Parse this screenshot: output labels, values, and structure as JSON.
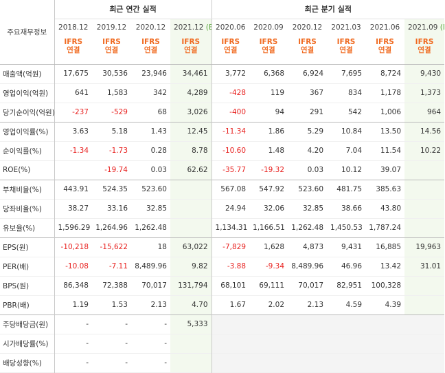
{
  "table": {
    "label_header": "주요재무정보",
    "group_annual": "최근 연간 실적",
    "group_quarter": "최근 분기 실적",
    "periods": [
      {
        "label": "2018.12",
        "est": ""
      },
      {
        "label": "2019.12",
        "est": ""
      },
      {
        "label": "2020.12",
        "est": ""
      },
      {
        "label": "2021.12",
        "est": "(E)"
      },
      {
        "label": "2020.06",
        "est": ""
      },
      {
        "label": "2020.09",
        "est": ""
      },
      {
        "label": "2020.12",
        "est": ""
      },
      {
        "label": "2021.03",
        "est": ""
      },
      {
        "label": "2021.06",
        "est": ""
      },
      {
        "label": "2021.09",
        "est": "(E)"
      }
    ],
    "ifrs_line1": "IFRS",
    "ifrs_line2": "연결",
    "rows": [
      {
        "label": "매출액(억원)",
        "values": [
          "17,675",
          "30,536",
          "23,946",
          "34,461",
          "3,772",
          "6,368",
          "6,924",
          "7,695",
          "8,724",
          "9,430"
        ]
      },
      {
        "label": "영업이익(억원)",
        "values": [
          "641",
          "1,583",
          "342",
          "4,289",
          "-428",
          "119",
          "367",
          "834",
          "1,178",
          "1,373"
        ]
      },
      {
        "label": "당기순이익(억원)",
        "values": [
          "-237",
          "-529",
          "68",
          "3,026",
          "-400",
          "94",
          "291",
          "542",
          "1,006",
          "964"
        ]
      },
      {
        "label": "영업이익률(%)",
        "values": [
          "3.63",
          "5.18",
          "1.43",
          "12.45",
          "-11.34",
          "1.86",
          "5.29",
          "10.84",
          "13.50",
          "14.56"
        ]
      },
      {
        "label": "순이익률(%)",
        "values": [
          "-1.34",
          "-1.73",
          "0.28",
          "8.78",
          "-10.60",
          "1.48",
          "4.20",
          "7.04",
          "11.54",
          "10.22"
        ]
      },
      {
        "label": "ROE(%)",
        "values": [
          "",
          "-19.74",
          "0.03",
          "62.62",
          "-35.77",
          "-19.32",
          "0.03",
          "10.12",
          "39.07",
          ""
        ]
      },
      {
        "label": "부채비율(%)",
        "values": [
          "443.91",
          "524.35",
          "523.60",
          "",
          "567.08",
          "547.92",
          "523.60",
          "481.75",
          "385.63",
          ""
        ]
      },
      {
        "label": "당좌비율(%)",
        "values": [
          "38.27",
          "33.16",
          "32.85",
          "",
          "24.94",
          "32.06",
          "32.85",
          "38.66",
          "43.80",
          ""
        ]
      },
      {
        "label": "유보율(%)",
        "values": [
          "1,596.29",
          "1,264.96",
          "1,262.48",
          "",
          "1,134.31",
          "1,166.51",
          "1,262.48",
          "1,450.53",
          "1,787.24",
          ""
        ]
      },
      {
        "label": "EPS(원)",
        "values": [
          "-10,218",
          "-15,622",
          "18",
          "63,022",
          "-7,829",
          "1,628",
          "4,873",
          "9,431",
          "16,885",
          "19,963"
        ]
      },
      {
        "label": "PER(배)",
        "values": [
          "-10.08",
          "-7.11",
          "8,489.96",
          "9.82",
          "-3.88",
          "-9.34",
          "8,489.96",
          "46.96",
          "13.42",
          "31.01"
        ]
      },
      {
        "label": "BPS(원)",
        "values": [
          "86,348",
          "72,388",
          "70,017",
          "131,794",
          "68,101",
          "69,111",
          "70,017",
          "82,951",
          "100,328",
          ""
        ]
      },
      {
        "label": "PBR(배)",
        "values": [
          "1.19",
          "1.53",
          "2.13",
          "4.70",
          "1.67",
          "2.02",
          "2.13",
          "4.59",
          "4.39",
          ""
        ]
      },
      {
        "label": "주당배당금(원)",
        "values": [
          "-",
          "-",
          "-",
          "5,333",
          "",
          "",
          "",
          "",
          "",
          ""
        ]
      },
      {
        "label": "시가배당률(%)",
        "values": [
          "-",
          "-",
          "-",
          "",
          "",
          "",
          "",
          "",
          "",
          ""
        ]
      },
      {
        "label": "배당성향(%)",
        "values": [
          "-",
          "-",
          "-",
          "",
          "",
          "",
          "",
          "",
          "",
          ""
        ]
      }
    ]
  },
  "colors": {
    "negative": "#e8201e",
    "ifrs": "#f06a20",
    "estimate_bg": "#f3f9ee",
    "estimate_tag": "#59a53b"
  }
}
